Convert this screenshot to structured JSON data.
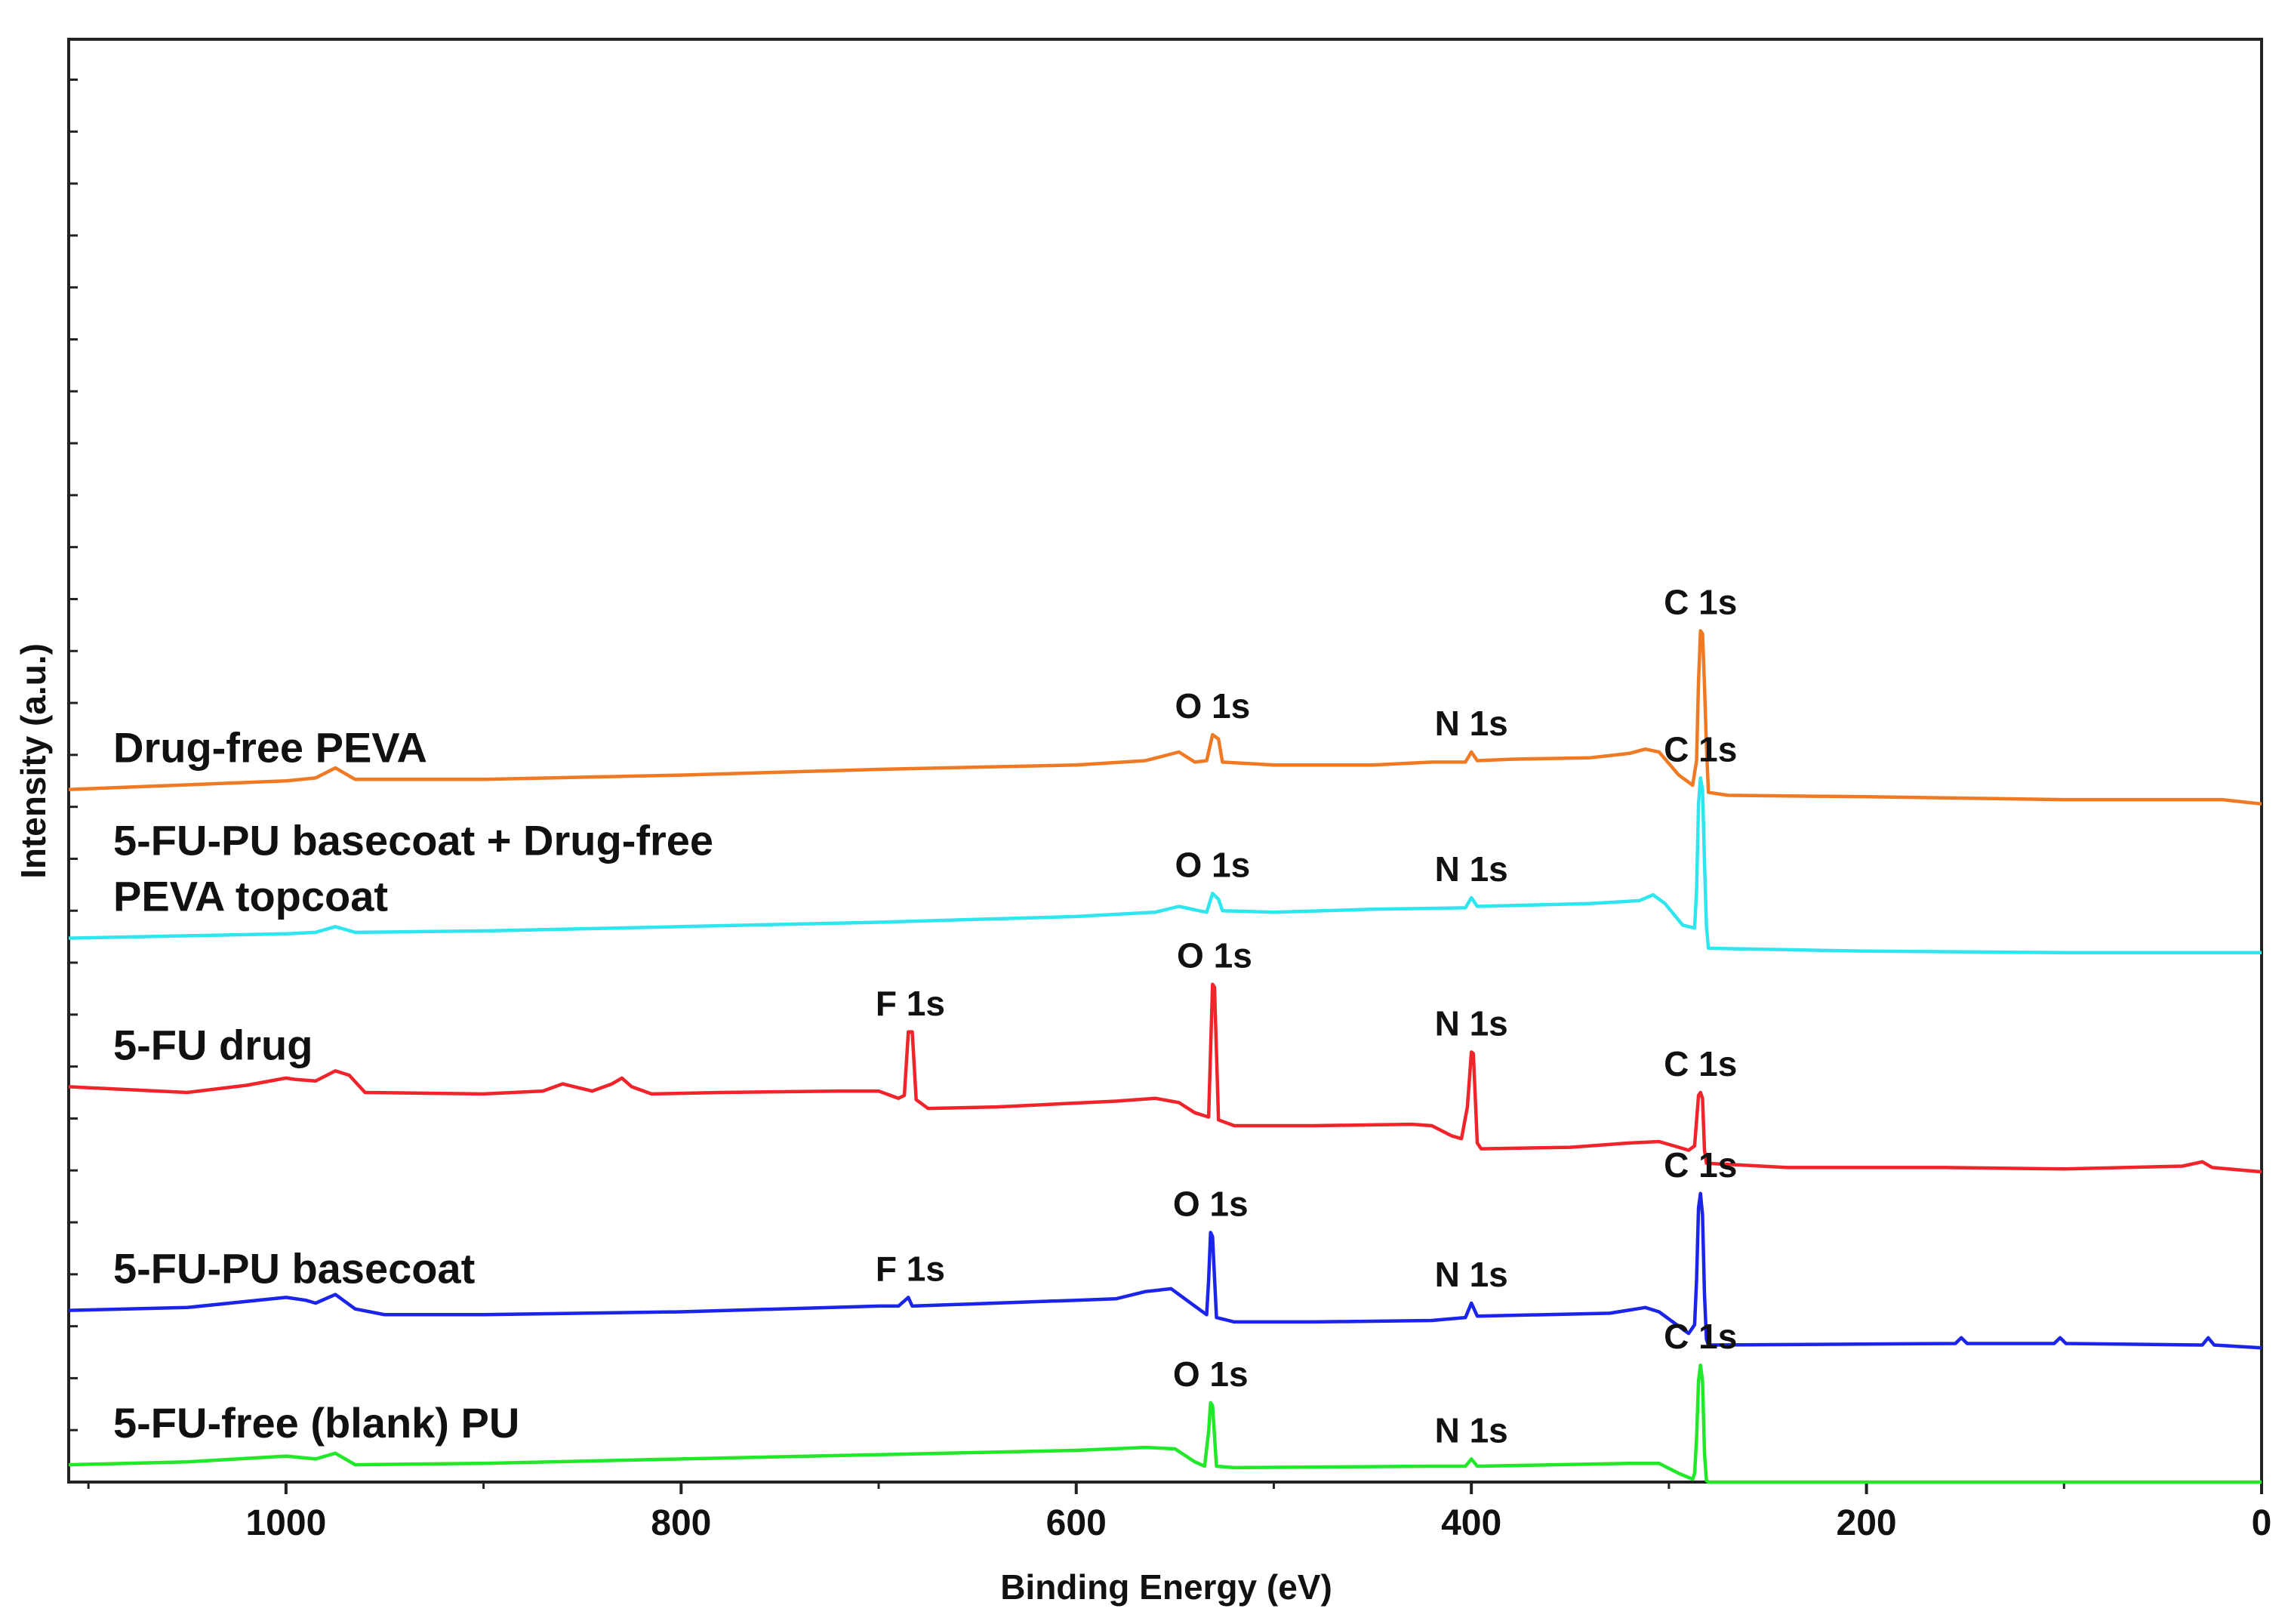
{
  "chart_data": {
    "type": "line",
    "title": "",
    "xlabel": "Binding Energy (eV)",
    "ylabel": "Intensity (a.u.)",
    "xlim": [
      1110,
      0
    ],
    "x_reversed": true,
    "xticks": [
      1000,
      800,
      600,
      400,
      200,
      0
    ],
    "y_tick_labels_shown": false,
    "ylim": [
      0,
      100
    ],
    "legend": "none (series labelled inline)",
    "grid": false,
    "series": [
      {
        "name": "Drug-free PEVA",
        "label_lines": [
          "Drug-free PEVA"
        ],
        "color": "#f07a24",
        "points": [
          [
            1110,
            48.0
          ],
          [
            1000,
            48.6
          ],
          [
            985,
            48.8
          ],
          [
            975,
            49.5
          ],
          [
            965,
            48.7
          ],
          [
            900,
            48.7
          ],
          [
            800,
            49.0
          ],
          [
            700,
            49.4
          ],
          [
            600,
            49.7
          ],
          [
            565,
            50.0
          ],
          [
            548,
            50.6
          ],
          [
            540,
            49.9
          ],
          [
            534,
            50.0
          ],
          [
            531,
            51.8
          ],
          [
            528,
            51.5
          ],
          [
            526,
            49.9
          ],
          [
            500,
            49.7
          ],
          [
            450,
            49.7
          ],
          [
            420,
            49.9
          ],
          [
            403,
            49.9
          ],
          [
            400,
            50.6
          ],
          [
            397,
            50.0
          ],
          [
            380,
            50.1
          ],
          [
            340,
            50.2
          ],
          [
            320,
            50.5
          ],
          [
            312,
            50.8
          ],
          [
            305,
            50.6
          ],
          [
            295,
            49.0
          ],
          [
            288,
            48.3
          ],
          [
            286,
            50.0
          ],
          [
            285,
            55.5
          ],
          [
            284,
            59.0
          ],
          [
            283,
            58.8
          ],
          [
            282,
            55.2
          ],
          [
            281,
            51.0
          ],
          [
            280,
            47.8
          ],
          [
            270,
            47.6
          ],
          [
            200,
            47.5
          ],
          [
            100,
            47.3
          ],
          [
            20,
            47.3
          ],
          [
            0,
            47.0
          ]
        ],
        "peaks": [
          {
            "label": "O 1s",
            "x": 531,
            "y": 51.8
          },
          {
            "label": "N 1s",
            "x": 400,
            "y": 50.6
          },
          {
            "label": "C 1s",
            "x": 284,
            "y": 59.0
          }
        ]
      },
      {
        "name": "5-FU-PU basecoat + Drug-free PEVA topcoat",
        "label_lines": [
          "5-FU-PU basecoat + Drug-free",
          "PEVA topcoat"
        ],
        "color": "#2fe6ee",
        "points": [
          [
            1110,
            37.7
          ],
          [
            1000,
            38.0
          ],
          [
            985,
            38.1
          ],
          [
            975,
            38.5
          ],
          [
            965,
            38.1
          ],
          [
            900,
            38.2
          ],
          [
            800,
            38.5
          ],
          [
            700,
            38.8
          ],
          [
            600,
            39.2
          ],
          [
            560,
            39.5
          ],
          [
            548,
            39.9
          ],
          [
            538,
            39.6
          ],
          [
            534,
            39.5
          ],
          [
            531,
            40.8
          ],
          [
            528,
            40.4
          ],
          [
            526,
            39.6
          ],
          [
            500,
            39.5
          ],
          [
            450,
            39.7
          ],
          [
            403,
            39.8
          ],
          [
            400,
            40.5
          ],
          [
            397,
            39.9
          ],
          [
            340,
            40.1
          ],
          [
            315,
            40.3
          ],
          [
            308,
            40.7
          ],
          [
            302,
            40.1
          ],
          [
            293,
            38.6
          ],
          [
            287,
            38.4
          ],
          [
            286,
            41.0
          ],
          [
            285,
            47.0
          ],
          [
            284,
            48.8
          ],
          [
            283,
            48.0
          ],
          [
            282,
            43.0
          ],
          [
            281,
            38.5
          ],
          [
            280,
            37.0
          ],
          [
            200,
            36.8
          ],
          [
            100,
            36.7
          ],
          [
            0,
            36.7
          ]
        ],
        "peaks": [
          {
            "label": "O 1s",
            "x": 531,
            "y": 40.8
          },
          {
            "label": "N 1s",
            "x": 400,
            "y": 40.5
          },
          {
            "label": "C 1s",
            "x": 284,
            "y": 48.8
          }
        ]
      },
      {
        "name": "5-FU drug",
        "label_lines": [
          "5-FU drug"
        ],
        "color": "#f0242a",
        "points": [
          [
            1110,
            27.4
          ],
          [
            1050,
            27.0
          ],
          [
            1020,
            27.5
          ],
          [
            1000,
            28.0
          ],
          [
            995,
            27.9
          ],
          [
            985,
            27.8
          ],
          [
            975,
            28.5
          ],
          [
            968,
            28.2
          ],
          [
            960,
            27.0
          ],
          [
            900,
            26.9
          ],
          [
            870,
            27.1
          ],
          [
            860,
            27.6
          ],
          [
            845,
            27.1
          ],
          [
            835,
            27.6
          ],
          [
            830,
            28.0
          ],
          [
            825,
            27.4
          ],
          [
            815,
            26.9
          ],
          [
            780,
            27.0
          ],
          [
            720,
            27.1
          ],
          [
            700,
            27.1
          ],
          [
            690,
            26.6
          ],
          [
            687,
            26.8
          ],
          [
            685,
            31.2
          ],
          [
            683,
            31.2
          ],
          [
            681,
            26.5
          ],
          [
            675,
            25.9
          ],
          [
            640,
            26.0
          ],
          [
            580,
            26.4
          ],
          [
            560,
            26.6
          ],
          [
            548,
            26.3
          ],
          [
            540,
            25.6
          ],
          [
            533,
            25.3
          ],
          [
            531,
            34.5
          ],
          [
            530,
            34.3
          ],
          [
            528,
            25.1
          ],
          [
            520,
            24.7
          ],
          [
            480,
            24.7
          ],
          [
            430,
            24.8
          ],
          [
            420,
            24.7
          ],
          [
            410,
            24.0
          ],
          [
            405,
            23.8
          ],
          [
            402,
            26.0
          ],
          [
            400,
            29.8
          ],
          [
            399,
            29.7
          ],
          [
            397,
            23.5
          ],
          [
            395,
            23.1
          ],
          [
            350,
            23.2
          ],
          [
            320,
            23.5
          ],
          [
            305,
            23.6
          ],
          [
            295,
            23.2
          ],
          [
            290,
            23.0
          ],
          [
            287,
            23.3
          ],
          [
            285,
            26.8
          ],
          [
            284,
            27.0
          ],
          [
            283,
            26.6
          ],
          [
            282,
            23.0
          ],
          [
            281,
            22.1
          ],
          [
            240,
            21.8
          ],
          [
            200,
            21.8
          ],
          [
            160,
            21.8
          ],
          [
            100,
            21.7
          ],
          [
            40,
            21.9
          ],
          [
            30,
            22.2
          ],
          [
            25,
            21.8
          ],
          [
            0,
            21.5
          ]
        ],
        "peaks": [
          {
            "label": "F 1s",
            "x": 684,
            "y": 31.2
          },
          {
            "label": "O 1s",
            "x": 530,
            "y": 34.5
          },
          {
            "label": "N 1s",
            "x": 400,
            "y": 29.8
          },
          {
            "label": "C 1s",
            "x": 284,
            "y": 27.0
          }
        ]
      },
      {
        "name": "5-FU-PU basecoat",
        "label_lines": [
          "5-FU-PU basecoat"
        ],
        "color": "#1a24ea",
        "points": [
          [
            1110,
            11.9
          ],
          [
            1050,
            12.1
          ],
          [
            1000,
            12.8
          ],
          [
            990,
            12.6
          ],
          [
            985,
            12.4
          ],
          [
            975,
            13.0
          ],
          [
            965,
            12.0
          ],
          [
            950,
            11.6
          ],
          [
            900,
            11.6
          ],
          [
            800,
            11.8
          ],
          [
            700,
            12.2
          ],
          [
            690,
            12.2
          ],
          [
            685,
            12.8
          ],
          [
            683,
            12.2
          ],
          [
            600,
            12.6
          ],
          [
            580,
            12.7
          ],
          [
            565,
            13.2
          ],
          [
            552,
            13.4
          ],
          [
            540,
            12.2
          ],
          [
            534,
            11.6
          ],
          [
            533,
            14.0
          ],
          [
            532,
            17.3
          ],
          [
            531,
            17.0
          ],
          [
            529,
            11.4
          ],
          [
            520,
            11.1
          ],
          [
            480,
            11.1
          ],
          [
            420,
            11.2
          ],
          [
            403,
            11.4
          ],
          [
            400,
            12.4
          ],
          [
            397,
            11.5
          ],
          [
            330,
            11.7
          ],
          [
            312,
            12.1
          ],
          [
            305,
            11.8
          ],
          [
            290,
            10.3
          ],
          [
            287,
            10.9
          ],
          [
            286,
            14.0
          ],
          [
            285,
            19.0
          ],
          [
            284,
            20.0
          ],
          [
            283,
            18.5
          ],
          [
            282,
            13.0
          ],
          [
            281,
            9.9
          ],
          [
            280,
            9.5
          ],
          [
            155,
            9.6
          ],
          [
            152,
            10.0
          ],
          [
            149,
            9.6
          ],
          [
            105,
            9.6
          ],
          [
            102,
            10.0
          ],
          [
            99,
            9.6
          ],
          [
            30,
            9.5
          ],
          [
            27,
            10.0
          ],
          [
            24,
            9.5
          ],
          [
            0,
            9.3
          ]
        ],
        "peaks": [
          {
            "label": "F 1s",
            "x": 684,
            "y": 12.8
          },
          {
            "label": "O 1s",
            "x": 532,
            "y": 17.3
          },
          {
            "label": "N 1s",
            "x": 400,
            "y": 12.4
          },
          {
            "label": "C 1s",
            "x": 284,
            "y": 20.0
          }
        ]
      },
      {
        "name": "5-FU-free (blank) PU",
        "label_lines": [
          "5-FU-free (blank) PU"
        ],
        "color": "#22e82a",
        "points": [
          [
            1110,
            1.2
          ],
          [
            1050,
            1.4
          ],
          [
            1000,
            1.8
          ],
          [
            985,
            1.6
          ],
          [
            975,
            2.0
          ],
          [
            965,
            1.2
          ],
          [
            900,
            1.3
          ],
          [
            800,
            1.6
          ],
          [
            700,
            1.9
          ],
          [
            600,
            2.2
          ],
          [
            565,
            2.4
          ],
          [
            550,
            2.3
          ],
          [
            540,
            1.4
          ],
          [
            535,
            1.1
          ],
          [
            533,
            3.5
          ],
          [
            532,
            5.5
          ],
          [
            531,
            5.3
          ],
          [
            529,
            1.1
          ],
          [
            520,
            1.0
          ],
          [
            420,
            1.1
          ],
          [
            403,
            1.1
          ],
          [
            400,
            1.6
          ],
          [
            397,
            1.1
          ],
          [
            320,
            1.3
          ],
          [
            305,
            1.3
          ],
          [
            295,
            0.6
          ],
          [
            288,
            0.2
          ],
          [
            287,
            0.6
          ],
          [
            286,
            3.0
          ],
          [
            285,
            7.0
          ],
          [
            284,
            8.1
          ],
          [
            283,
            7.0
          ],
          [
            282,
            2.0
          ],
          [
            281,
            0.1
          ],
          [
            280,
            0.0
          ],
          [
            200,
            0.0
          ],
          [
            100,
            0.0
          ],
          [
            0,
            0.0
          ]
        ],
        "peaks": [
          {
            "label": "O 1s",
            "x": 532,
            "y": 5.5
          },
          {
            "label": "N 1s",
            "x": 400,
            "y": 1.6
          },
          {
            "label": "C 1s",
            "x": 284,
            "y": 8.1
          }
        ]
      }
    ]
  }
}
